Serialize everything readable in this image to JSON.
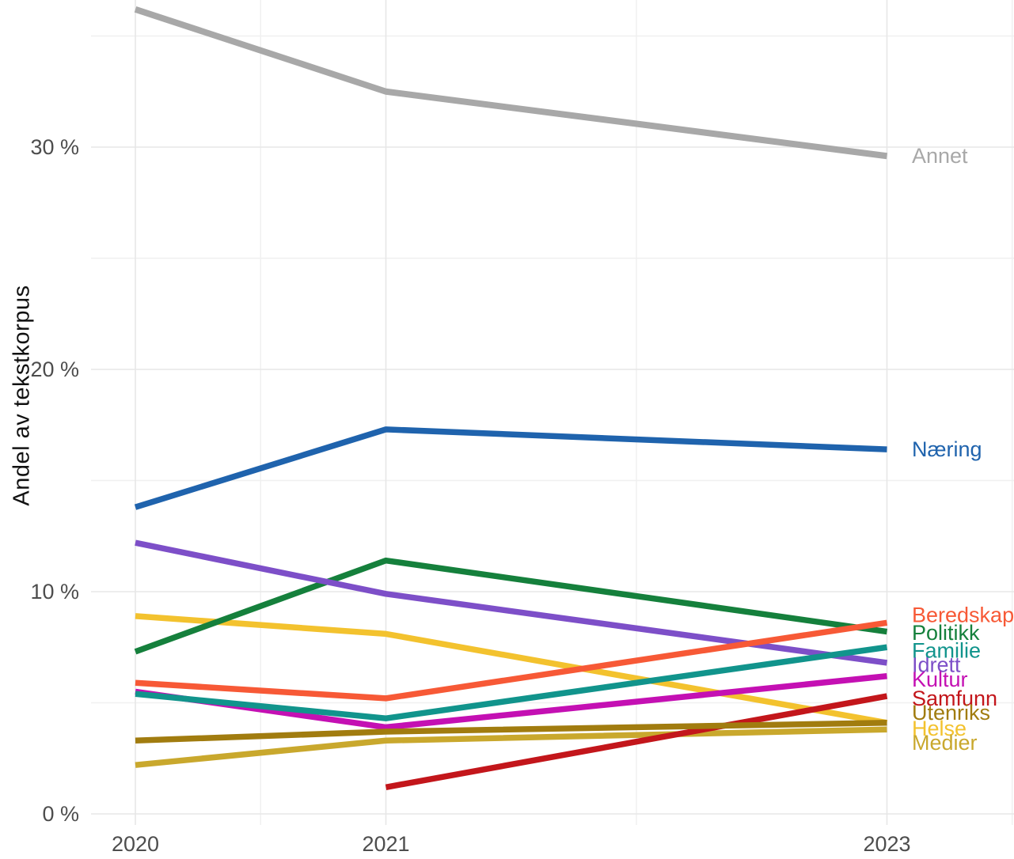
{
  "chart_data": {
    "type": "line",
    "title": "",
    "ylabel": "Andel av tekstkorpus",
    "xlabel": "",
    "x_ticks": [
      {
        "label": "2020",
        "year": 2020
      },
      {
        "label": "2021",
        "year": 2021
      },
      {
        "label": "2023",
        "year": 2023
      }
    ],
    "x_minor_gridlines_years": [
      2020.5,
      2022,
      2023.5
    ],
    "y_ticks": [
      {
        "label": "0 %",
        "value": 0
      },
      {
        "label": "10 %",
        "value": 10
      },
      {
        "label": "20 %",
        "value": 20
      },
      {
        "label": "30 %",
        "value": 30
      }
    ],
    "y_minor_gridlines_values": [
      5,
      15,
      25,
      35
    ],
    "x_range_years": [
      2019.8,
      2023.5
    ],
    "y_range_percent": [
      -0.5,
      36.6
    ],
    "grid": true,
    "legend_position": "direct-labels-right",
    "unit": "percent of text corpus",
    "series": [
      {
        "name": "Annet",
        "color": "#a8a8a8",
        "label_value": 29.6,
        "points": [
          [
            2020,
            36.2
          ],
          [
            2021,
            32.5
          ],
          [
            2023,
            29.6
          ]
        ]
      },
      {
        "name": "Næring",
        "color": "#1f63ad",
        "label_value": 16.4,
        "points": [
          [
            2020,
            13.8
          ],
          [
            2021,
            17.3
          ],
          [
            2023,
            16.4
          ]
        ]
      },
      {
        "name": "Helse",
        "color": "#f3c22e",
        "label_value": 3.85,
        "points": [
          [
            2020,
            8.9
          ],
          [
            2021,
            8.1
          ],
          [
            2023,
            4.1
          ]
        ]
      },
      {
        "name": "Politikk",
        "color": "#15803c",
        "label_value": 8.15,
        "points": [
          [
            2020,
            7.3
          ],
          [
            2021,
            11.4
          ],
          [
            2023,
            8.2
          ]
        ]
      },
      {
        "name": "Idrett",
        "color": "#7d4fc8",
        "label_value": 6.7,
        "points": [
          [
            2020,
            12.2
          ],
          [
            2021,
            9.9
          ],
          [
            2023,
            6.8
          ]
        ]
      },
      {
        "name": "Medier",
        "color": "#c9a82d",
        "label_value": 3.2,
        "points": [
          [
            2020,
            2.2
          ],
          [
            2021,
            3.3
          ],
          [
            2023,
            3.8
          ]
        ]
      },
      {
        "name": "Kultur",
        "color": "#c410b3",
        "label_value": 6.05,
        "points": [
          [
            2020,
            5.5
          ],
          [
            2021,
            3.9
          ],
          [
            2023,
            6.2
          ]
        ]
      },
      {
        "name": "Familie",
        "color": "#11948c",
        "label_value": 7.35,
        "points": [
          [
            2020,
            5.4
          ],
          [
            2021,
            4.3
          ],
          [
            2023,
            7.5
          ]
        ]
      },
      {
        "name": "Beredskap",
        "color": "#f75936",
        "label_value": 8.95,
        "points": [
          [
            2020,
            5.9
          ],
          [
            2021,
            5.2
          ],
          [
            2023,
            8.6
          ]
        ]
      },
      {
        "name": "Samfunn",
        "color": "#c3161b",
        "label_value": 5.2,
        "points": [
          [
            2021,
            1.2
          ],
          [
            2023,
            5.3
          ]
        ]
      },
      {
        "name": "Utenriks",
        "color": "#a17c0f",
        "label_value": 4.55,
        "points": [
          [
            2020,
            3.3
          ],
          [
            2021,
            3.7
          ],
          [
            2023,
            4.1
          ]
        ]
      }
    ]
  },
  "styles": {
    "axis_text_color": "#4d4d4d",
    "axis_title_color": "#111111",
    "grid_major_color": "#e7e7e7",
    "grid_minor_color": "#f0f0f0",
    "background": "#ffffff"
  }
}
